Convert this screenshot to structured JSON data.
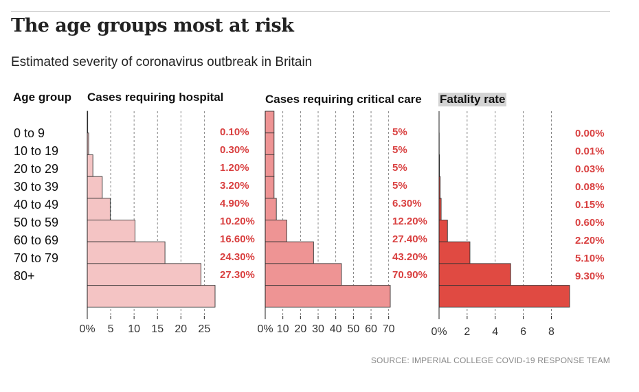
{
  "title": "The age groups most at risk",
  "subtitle": "Estimated severity of coronavirus outbreak in Britain",
  "source": "SOURCE: IMPERIAL COLLEGE COVID-19 RESPONSE TEAM",
  "age_header": "Age group",
  "age_groups": [
    "0 to 9",
    "10 to 19",
    "20 to 29",
    "30 to 39",
    "40 to 49",
    "50 to 59",
    "60 to 69",
    "70 to 79",
    "80+"
  ],
  "colors": {
    "label_red": "#d94040",
    "hospital": "#f4c4c4",
    "critical": "#ee9494",
    "fatality": "#e04a42"
  },
  "chart_data": [
    {
      "type": "bar",
      "orientation": "horizontal",
      "title": "Cases requiring hospital",
      "categories": [
        "0 to 9",
        "10 to 19",
        "20 to 29",
        "30 to 39",
        "40 to 49",
        "50 to 59",
        "60 to 69",
        "70 to 79",
        "80+"
      ],
      "values": [
        0.1,
        0.3,
        1.2,
        3.2,
        4.9,
        10.2,
        16.6,
        24.3,
        27.3
      ],
      "value_labels": [
        "0.10%",
        "0.30%",
        "1.20%",
        "3.20%",
        "4.90%",
        "10.20%",
        "16.60%",
        "24.30%",
        "27.30%"
      ],
      "xlim": [
        0,
        27.3
      ],
      "ticks": [
        0,
        5,
        10,
        15,
        20,
        25
      ],
      "tick_labels": [
        "0%",
        "5",
        "10",
        "15",
        "20",
        "25"
      ],
      "grid": true
    },
    {
      "type": "bar",
      "orientation": "horizontal",
      "title": "Cases requiring critical care",
      "categories": [
        "0 to 9",
        "10 to 19",
        "20 to 29",
        "30 to 39",
        "40 to 49",
        "50 to 59",
        "60 to 69",
        "70 to 79",
        "80+"
      ],
      "values": [
        5,
        5,
        5,
        5,
        6.3,
        12.2,
        27.4,
        43.2,
        70.9
      ],
      "value_labels": [
        "5%",
        "5%",
        "5%",
        "5%",
        "6.30%",
        "12.20%",
        "27.40%",
        "43.20%",
        "70.90%"
      ],
      "xlim": [
        0,
        70.9
      ],
      "ticks": [
        0,
        10,
        20,
        30,
        40,
        50,
        60,
        70
      ],
      "tick_labels": [
        "0%",
        "10",
        "20",
        "30",
        "40",
        "50",
        "60",
        "70"
      ],
      "grid": true
    },
    {
      "type": "bar",
      "orientation": "horizontal",
      "title": "Fatality rate",
      "categories": [
        "0 to 9",
        "10 to 19",
        "20 to 29",
        "30 to 39",
        "40 to 49",
        "50 to 59",
        "60 to 69",
        "70 to 79",
        "80+"
      ],
      "values": [
        0.0,
        0.01,
        0.03,
        0.08,
        0.15,
        0.6,
        2.2,
        5.1,
        9.3
      ],
      "value_labels": [
        "0.00%",
        "0.01%",
        "0.03%",
        "0.08%",
        "0.15%",
        "0.60%",
        "2.20%",
        "5.10%",
        "9.30%"
      ],
      "xlim": [
        0,
        9.3
      ],
      "ticks": [
        0,
        2,
        4,
        6,
        8
      ],
      "tick_labels": [
        "0%",
        "2",
        "4",
        "6",
        "8"
      ],
      "grid": true
    }
  ]
}
